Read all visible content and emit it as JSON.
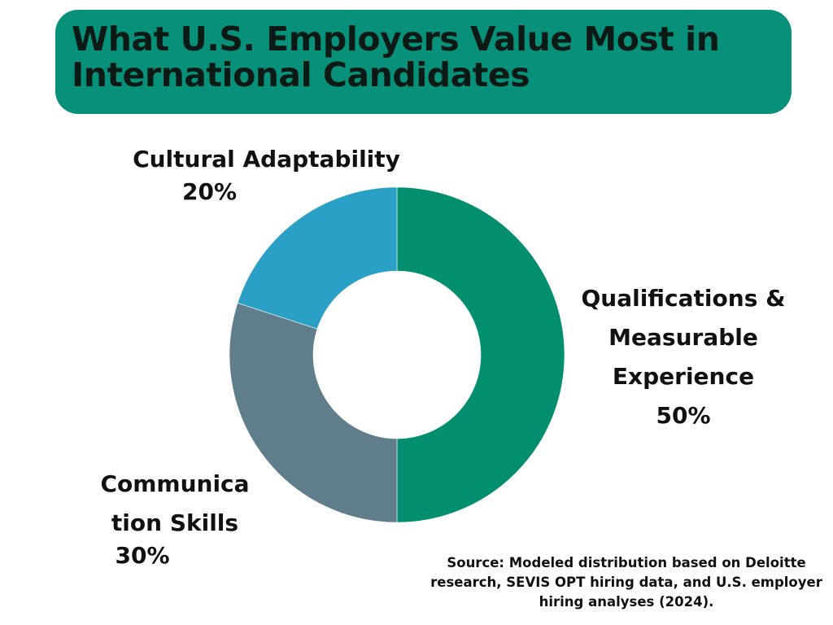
{
  "colors": {
    "title_bg": "#07907a",
    "qualifications": "#028f70",
    "communication": "#607d8b",
    "cultural": "#2aa0c6"
  },
  "chart_data": {
    "type": "pie",
    "variant": "donut",
    "title": "What U.S. Employers Value Most in International Candidates",
    "slices": [
      {
        "label": "Qualifications & Measurable Experience",
        "value": 50,
        "value_label": "50%",
        "color": "#028f70"
      },
      {
        "label": "Communication Skills",
        "label_lines": [
          "Communica",
          "tion Skills"
        ],
        "value": 30,
        "value_label": "30%",
        "color": "#607d8b"
      },
      {
        "label": "Cultural Adaptability",
        "value": 20,
        "value_label": "20%",
        "color": "#2aa0c6"
      }
    ],
    "start": "top",
    "direction": "clockwise",
    "legend": "none",
    "source": "Source: Modeled distribution based on Deloitte research, SEVIS OPT hiring data, and U.S. employer hiring analyses (2024)."
  }
}
